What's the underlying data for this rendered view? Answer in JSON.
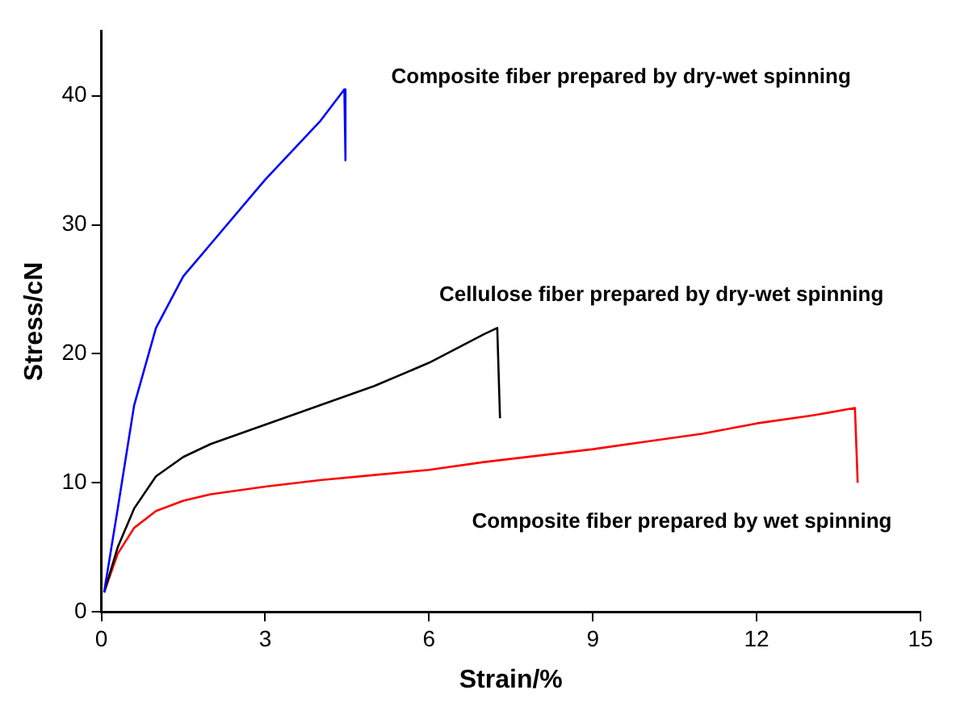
{
  "chart_data": {
    "type": "line",
    "xlabel": "Strain/%",
    "ylabel": "Stress/cN",
    "xlim": [
      0,
      15
    ],
    "xticks": [
      0,
      3,
      6,
      9,
      12,
      15
    ],
    "ylim": [
      0,
      45
    ],
    "yticks": [
      0,
      10,
      20,
      30,
      40
    ],
    "grid": false,
    "legend": false,
    "series": [
      {
        "name": "Composite fiber prepared by dry-wet spinning",
        "color": "#0000ff",
        "x": [
          0.05,
          0.3,
          0.6,
          1,
          1.5,
          2,
          3,
          4,
          4.45,
          4.47
        ],
        "values": [
          1.5,
          8,
          16,
          22,
          26,
          28.5,
          33.5,
          38,
          40.5,
          35
        ]
      },
      {
        "name": "Cellulose fiber prepared by dry-wet spinning",
        "color": "#000000",
        "x": [
          0.05,
          0.3,
          0.6,
          1,
          1.5,
          2,
          3,
          4,
          5,
          6,
          7,
          7.25,
          7.3
        ],
        "values": [
          1.5,
          5,
          8,
          10.5,
          12,
          13,
          14.5,
          16,
          17.5,
          19.3,
          21.5,
          22,
          15
        ]
      },
      {
        "name": "Composite fiber prepared by wet spinning",
        "color": "#ff0000",
        "x": [
          0.05,
          0.3,
          0.6,
          1,
          1.5,
          2,
          3,
          4,
          5,
          6,
          7,
          8,
          9,
          10,
          11,
          12,
          13,
          13.8,
          13.85
        ],
        "values": [
          1.5,
          4.5,
          6.5,
          7.8,
          8.6,
          9.1,
          9.7,
          10.2,
          10.6,
          11,
          11.6,
          12.1,
          12.6,
          13.2,
          13.8,
          14.6,
          15.2,
          15.8,
          10
        ]
      }
    ]
  }
}
